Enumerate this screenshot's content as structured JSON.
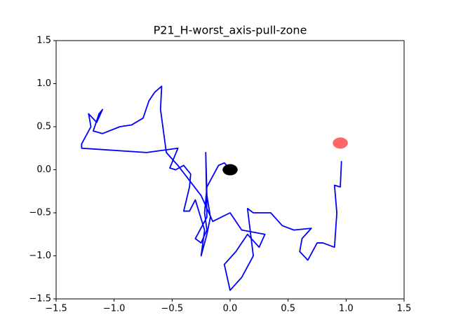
{
  "chart_data": {
    "type": "line",
    "title": "P21_H-worst_axis-pull-zone",
    "x": [
      -0.01,
      -0.05,
      -0.1,
      -0.2,
      -0.22,
      -0.2,
      -0.25,
      -0.3,
      -0.2,
      -0.21,
      -0.2,
      -0.17,
      -0.2,
      -0.25,
      -0.22,
      -0.3,
      -0.35,
      -0.4,
      -0.35,
      -0.34,
      -0.4,
      -0.47,
      -0.52,
      -0.45,
      -0.72,
      -1.28,
      -1.28,
      -1.2,
      -1.22,
      -1.15,
      -1.1,
      -1.13,
      -1.18,
      -1.1,
      -0.95,
      -0.85,
      -0.75,
      -0.7,
      -0.65,
      -0.59,
      -0.6,
      -0.58,
      -0.55,
      -0.45,
      -0.25,
      -0.15,
      0.0,
      0.1,
      0.3,
      0.25,
      0.15,
      0.05,
      -0.05,
      0.0,
      0.1,
      0.2,
      0.15,
      0.2,
      0.35,
      0.45,
      0.55,
      0.7,
      0.62,
      0.6,
      0.67,
      0.75,
      0.8,
      0.9,
      0.92,
      0.9,
      0.95,
      0.96
    ],
    "values": [
      0.02,
      0.08,
      0.05,
      -0.2,
      -0.5,
      -0.7,
      -0.85,
      -0.8,
      -0.55,
      0.2,
      -0.3,
      -0.55,
      -0.75,
      -1.0,
      -0.7,
      -0.35,
      -0.48,
      -0.48,
      -0.2,
      -0.05,
      0.05,
      0.0,
      0.02,
      0.25,
      0.2,
      0.25,
      0.3,
      0.5,
      0.65,
      0.55,
      0.7,
      0.65,
      0.45,
      0.42,
      0.5,
      0.52,
      0.6,
      0.8,
      0.9,
      0.97,
      0.7,
      0.5,
      0.2,
      0.05,
      -0.3,
      -0.6,
      -0.5,
      -0.7,
      -0.75,
      -0.9,
      -0.75,
      -0.95,
      -1.1,
      -1.4,
      -1.25,
      -1.0,
      -0.45,
      -0.5,
      -0.5,
      -0.65,
      -0.7,
      -0.68,
      -0.8,
      -0.95,
      -1.05,
      -0.85,
      -0.85,
      -0.9,
      -0.5,
      -0.18,
      -0.2,
      0.1
    ],
    "color": "#0000ff",
    "markers": [
      {
        "x": 0.0,
        "y": 0.0,
        "color": "#000000"
      },
      {
        "x": 0.95,
        "y": 0.31,
        "color": "#ff3333"
      }
    ],
    "xlim": [
      -1.5,
      1.5
    ],
    "ylim": [
      -1.5,
      1.5
    ],
    "xticks": [
      {
        "value": -1.5,
        "label": "−1.5"
      },
      {
        "value": -1.0,
        "label": "−1.0"
      },
      {
        "value": -0.5,
        "label": "−0.5"
      },
      {
        "value": 0,
        "label": "0.0"
      },
      0.5,
      {
        "value": 1,
        "label": "1.0"
      },
      1.5
    ],
    "yticks": [
      {
        "value": -1.5,
        "label": "−1.5"
      },
      {
        "value": -1.0,
        "label": "−1.0"
      },
      {
        "value": -0.5,
        "label": "−0.5"
      },
      {
        "value": 0,
        "label": "0.0"
      },
      0.5,
      {
        "value": 1,
        "label": "1.0"
      },
      1.5
    ]
  }
}
